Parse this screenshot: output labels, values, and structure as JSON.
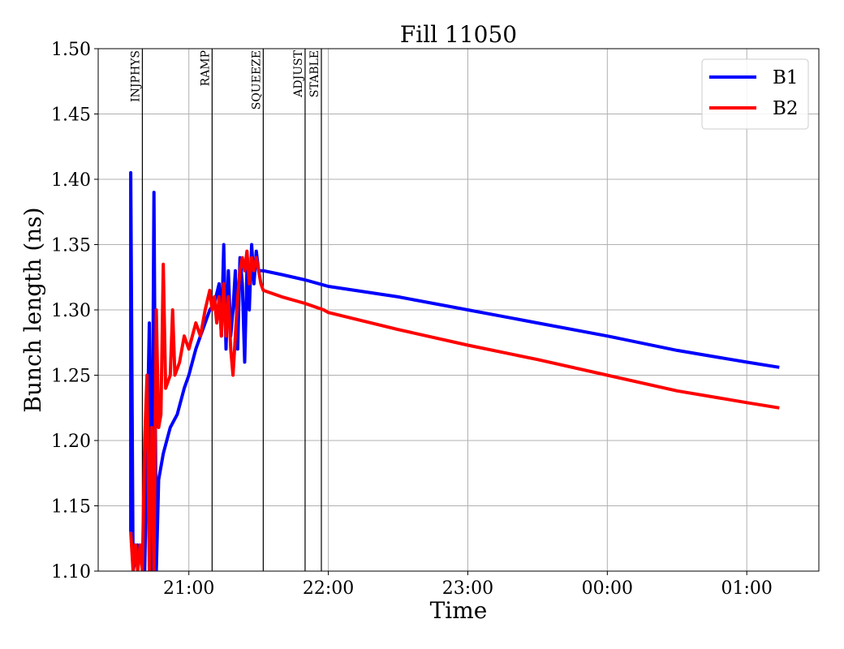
{
  "chart_data": {
    "type": "line",
    "title": "Fill 11050",
    "xlabel": "Time",
    "ylabel": "Bunch length (ns)",
    "xlim": [
      "20:21",
      "01:31"
    ],
    "ylim": [
      1.1,
      1.5
    ],
    "x_ticks": [
      {
        "time": "21:00",
        "label": "21:00"
      },
      {
        "time": "22:00",
        "label": "22:00"
      },
      {
        "time": "23:00",
        "label": "23:00"
      },
      {
        "time": "00:00",
        "label": "00:00"
      },
      {
        "time": "01:00",
        "label": "01:00"
      }
    ],
    "y_ticks": [
      1.1,
      1.15,
      1.2,
      1.25,
      1.3,
      1.35,
      1.4,
      1.45,
      1.5
    ],
    "grid": true,
    "legend_position": "top-right",
    "mode_lines": [
      {
        "label": "INJPHYS",
        "time": "20:40"
      },
      {
        "label": "RAMP",
        "time": "21:10"
      },
      {
        "label": "SQUEEZE",
        "time": "21:32"
      },
      {
        "label": "ADJUST",
        "time": "21:50"
      },
      {
        "label": "STABLE",
        "time": "21:57"
      }
    ],
    "series": [
      {
        "name": "B1",
        "color": "#0000ff",
        "points": [
          [
            "20:35",
            1.13
          ],
          [
            "20:35",
            1.405
          ],
          [
            "20:36",
            1.1
          ],
          [
            "20:38",
            1.12
          ],
          [
            "20:41",
            1.1
          ],
          [
            "20:43",
            1.29
          ],
          [
            "20:44",
            1.1
          ],
          [
            "20:45",
            1.39
          ],
          [
            "20:46",
            1.1
          ],
          [
            "20:47",
            1.17
          ],
          [
            "20:49",
            1.19
          ],
          [
            "20:52",
            1.21
          ],
          [
            "20:55",
            1.22
          ],
          [
            "20:58",
            1.24
          ],
          [
            "21:00",
            1.25
          ],
          [
            "21:03",
            1.27
          ],
          [
            "21:05",
            1.28
          ],
          [
            "21:07",
            1.29
          ],
          [
            "21:09",
            1.3
          ],
          [
            "21:11",
            1.305
          ],
          [
            "21:13",
            1.32
          ],
          [
            "21:14",
            1.28
          ],
          [
            "21:15",
            1.35
          ],
          [
            "21:16",
            1.27
          ],
          [
            "21:17",
            1.33
          ],
          [
            "21:18",
            1.28
          ],
          [
            "21:19",
            1.3
          ],
          [
            "21:20",
            1.33
          ],
          [
            "21:21",
            1.27
          ],
          [
            "21:22",
            1.34
          ],
          [
            "21:23",
            1.32
          ],
          [
            "21:24",
            1.26
          ],
          [
            "21:25",
            1.33
          ],
          [
            "21:26",
            1.3
          ],
          [
            "21:27",
            1.35
          ],
          [
            "21:28",
            1.32
          ],
          [
            "21:29",
            1.345
          ],
          [
            "21:30",
            1.33
          ],
          [
            "21:32",
            1.33
          ],
          [
            "21:40",
            1.327
          ],
          [
            "21:50",
            1.323
          ],
          [
            "21:58",
            1.319
          ],
          [
            "22:00",
            1.318
          ],
          [
            "22:30",
            1.31
          ],
          [
            "23:00",
            1.3
          ],
          [
            "23:30",
            1.29
          ],
          [
            "00:00",
            1.28
          ],
          [
            "00:30",
            1.269
          ],
          [
            "01:00",
            1.26
          ],
          [
            "01:14",
            1.256
          ]
        ]
      },
      {
        "name": "B2",
        "color": "#ff0000",
        "points": [
          [
            "20:35",
            1.13
          ],
          [
            "20:36",
            1.1
          ],
          [
            "20:37",
            1.12
          ],
          [
            "20:38",
            1.1
          ],
          [
            "20:39",
            1.12
          ],
          [
            "20:40",
            1.1
          ],
          [
            "20:41",
            1.2
          ],
          [
            "20:42",
            1.25
          ],
          [
            "20:43",
            1.1
          ],
          [
            "20:44",
            1.21
          ],
          [
            "20:45",
            1.1
          ],
          [
            "20:46",
            1.3
          ],
          [
            "20:47",
            1.21
          ],
          [
            "20:48",
            1.22
          ],
          [
            "20:49",
            1.335
          ],
          [
            "20:50",
            1.24
          ],
          [
            "20:52",
            1.25
          ],
          [
            "20:53",
            1.3
          ],
          [
            "20:54",
            1.25
          ],
          [
            "20:56",
            1.26
          ],
          [
            "20:58",
            1.28
          ],
          [
            "21:00",
            1.27
          ],
          [
            "21:03",
            1.29
          ],
          [
            "21:05",
            1.28
          ],
          [
            "21:07",
            1.3
          ],
          [
            "21:09",
            1.315
          ],
          [
            "21:10",
            1.3
          ],
          [
            "21:11",
            1.31
          ],
          [
            "21:12",
            1.29
          ],
          [
            "21:13",
            1.31
          ],
          [
            "21:14",
            1.28
          ],
          [
            "21:15",
            1.32
          ],
          [
            "21:16",
            1.28
          ],
          [
            "21:17",
            1.31
          ],
          [
            "21:18",
            1.27
          ],
          [
            "21:19",
            1.25
          ],
          [
            "21:20",
            1.28
          ],
          [
            "21:21",
            1.31
          ],
          [
            "21:22",
            1.33
          ],
          [
            "21:23",
            1.34
          ],
          [
            "21:24",
            1.33
          ],
          [
            "21:25",
            1.345
          ],
          [
            "21:26",
            1.32
          ],
          [
            "21:27",
            1.34
          ],
          [
            "21:28",
            1.33
          ],
          [
            "21:29",
            1.34
          ],
          [
            "21:30",
            1.33
          ],
          [
            "21:31",
            1.32
          ],
          [
            "21:32",
            1.315
          ],
          [
            "21:40",
            1.31
          ],
          [
            "21:50",
            1.305
          ],
          [
            "21:58",
            1.3
          ],
          [
            "22:00",
            1.298
          ],
          [
            "22:30",
            1.285
          ],
          [
            "23:00",
            1.273
          ],
          [
            "23:30",
            1.262
          ],
          [
            "00:00",
            1.25
          ],
          [
            "00:30",
            1.238
          ],
          [
            "01:00",
            1.229
          ],
          [
            "01:14",
            1.225
          ]
        ]
      }
    ]
  }
}
